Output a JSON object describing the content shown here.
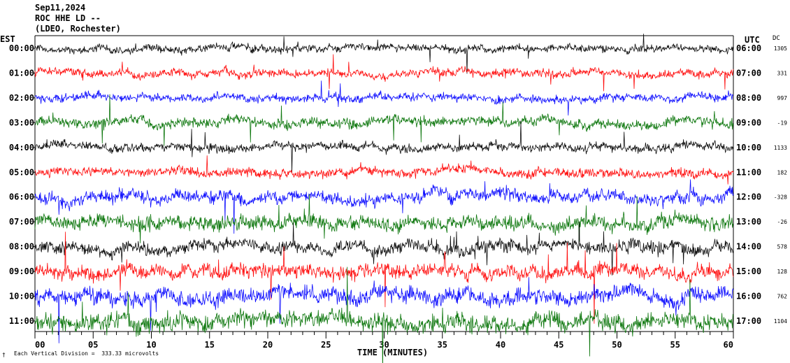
{
  "header": {
    "date": "Sep11,2024",
    "station": "ROC HHE LD --",
    "network": "(LDEO, Rochester)"
  },
  "left_label": "EST",
  "right_label": "UTC",
  "dc_label": "DC",
  "footer": {
    "division_note": "Each Vertical Division =  333.33 microvolts",
    "corner_mark": "†"
  },
  "chart_data": {
    "type": "line",
    "title": "Sep11,2024 ROC HHE LD -- (LDEO, Rochester)",
    "xlabel": "TIME (MINUTES)",
    "xlim": [
      0,
      60
    ],
    "x_ticks": [
      "00",
      "05",
      "10",
      "15",
      "20",
      "25",
      "30",
      "35",
      "40",
      "45",
      "50",
      "55",
      "60"
    ],
    "rows": [
      {
        "est": "00:00",
        "utc": "06:00",
        "dc": "1305",
        "color": "#000000"
      },
      {
        "est": "01:00",
        "utc": "07:00",
        "dc": "331",
        "color": "#ff0000"
      },
      {
        "est": "02:00",
        "utc": "08:00",
        "dc": "997",
        "color": "#0000ff"
      },
      {
        "est": "03:00",
        "utc": "09:00",
        "dc": "-19",
        "color": "#007000"
      },
      {
        "est": "04:00",
        "utc": "10:00",
        "dc": "1133",
        "color": "#000000"
      },
      {
        "est": "05:00",
        "utc": "11:00",
        "dc": "182",
        "color": "#ff0000"
      },
      {
        "est": "06:00",
        "utc": "12:00",
        "dc": "-328",
        "color": "#0000ff"
      },
      {
        "est": "07:00",
        "utc": "13:00",
        "dc": "-26",
        "color": "#007000"
      },
      {
        "est": "08:00",
        "utc": "14:00",
        "dc": "578",
        "color": "#000000"
      },
      {
        "est": "09:00",
        "utc": "15:00",
        "dc": "128",
        "color": "#ff0000"
      },
      {
        "est": "10:00",
        "utc": "16:00",
        "dc": "762",
        "color": "#0000ff"
      },
      {
        "est": "11:00",
        "utc": "17:00",
        "dc": "1104",
        "color": "#007000"
      }
    ],
    "trace_amplitude_divisions": [
      0.55,
      0.6,
      0.6,
      0.75,
      0.65,
      0.7,
      0.95,
      1.1,
      0.95,
      1.05,
      1.15,
      1.25
    ]
  }
}
